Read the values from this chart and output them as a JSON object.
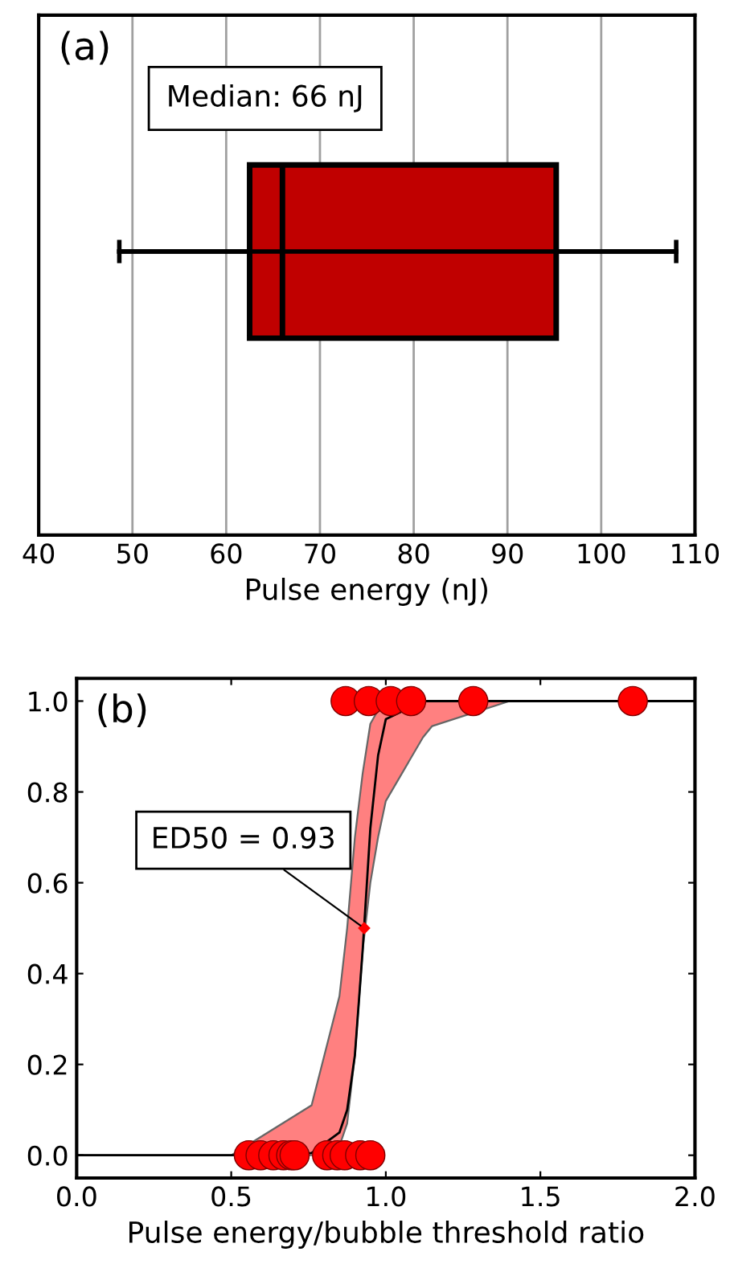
{
  "chart_data": [
    {
      "type": "box",
      "orientation": "horizontal",
      "categories": [
        null
      ],
      "color": "#c00000",
      "boxes": [
        {
          "low": 48.6,
          "q1": 62.5,
          "median": 66,
          "q3": 95.2,
          "high": 108
        }
      ],
      "xlabel": "Pulse energy (nJ)",
      "xlim": [
        40,
        110
      ],
      "xticks": [
        40,
        50,
        60,
        70,
        80,
        90,
        100,
        110
      ],
      "grid": "x",
      "tick_labels": "x",
      "annotations": [
        "(a)",
        "Median: 66 nJ"
      ]
    },
    {
      "type": "scatter",
      "xlabel": "Pulse energy/bubble threshold ratio",
      "xlim": [
        0.0,
        2.0
      ],
      "xticks": [
        {
          "value": 0,
          "label": "0.0"
        },
        0.5,
        {
          "value": 1,
          "label": "1.0"
        },
        1.5,
        {
          "value": 2,
          "label": "2.0"
        }
      ],
      "ylim": [
        -0.05,
        1.05
      ],
      "yticks": [
        {
          "value": 0,
          "label": "0.0"
        },
        0.2,
        0.4,
        0.6,
        0.8,
        {
          "value": 1,
          "label": "1.0"
        }
      ],
      "grid": false,
      "series": [
        {
          "type": "line",
          "color": "#000000",
          "x": [
            0,
            0.5,
            0.76,
            0.85,
            0.875,
            0.9,
            0.925,
            0.95,
            0.975,
            1.0,
            1.12,
            1.15,
            1.4,
            2.0
          ],
          "values": [
            0,
            0,
            0.005,
            0.05,
            0.1,
            0.22,
            0.45,
            0.72,
            0.88,
            0.96,
            1,
            1,
            1,
            1
          ],
          "lower": [
            0,
            0,
            0,
            0.02,
            0.07,
            0.22,
            0.45,
            0.6,
            0.7,
            0.78,
            0.92,
            0.945,
            1,
            1
          ],
          "upper": [
            0,
            0,
            0.11,
            0.35,
            0.5,
            0.7,
            0.84,
            0.95,
            0.98,
            1,
            1,
            1,
            1,
            1
          ]
        },
        {
          "type": "scatter",
          "color": "#ff0000",
          "marker": "circle",
          "x": [
            0.557,
            0.595,
            0.636,
            0.669,
            0.694,
            0.705,
            0.81,
            0.843,
            0.867,
            0.917,
            0.95,
            0.87,
            0.945,
            1.016,
            1.082,
            1.283,
            1.799
          ],
          "values": [
            0,
            0,
            0,
            0,
            0,
            0,
            0,
            0,
            0,
            0,
            0,
            1,
            1,
            1,
            1,
            1,
            1
          ]
        }
      ],
      "annotations": [
        "(b)",
        {
          "text": "ED50 = 0.93",
          "x": 0.93,
          "y": 0.5
        }
      ]
    }
  ]
}
